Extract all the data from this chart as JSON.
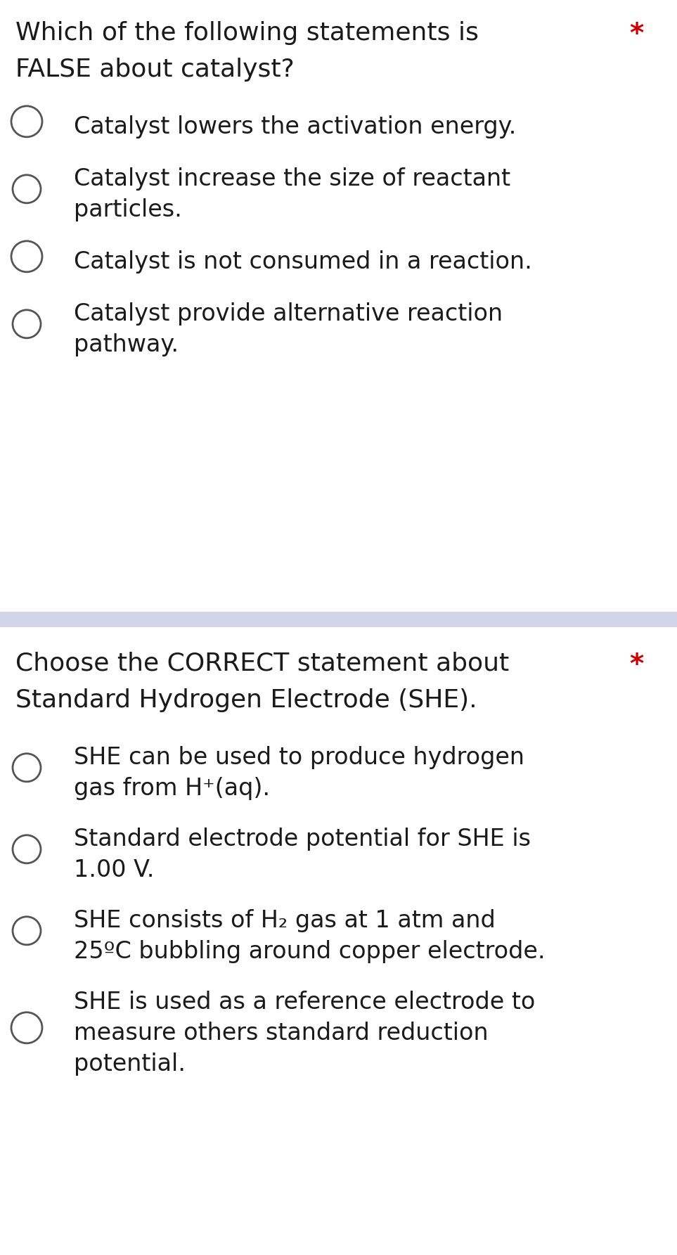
{
  "bg_color": "#ffffff",
  "divider_color": "#d4d4e8",
  "question1": {
    "line1": "Which of the following statements is",
    "line2": "FALSE about catalyst?",
    "asterisk": "*",
    "asterisk_color": "#cc0000",
    "options": [
      {
        "lines": [
          "Catalyst lowers the activation energy."
        ],
        "circle_size": "large"
      },
      {
        "lines": [
          "Catalyst increase the size of reactant",
          "particles."
        ],
        "circle_size": "small"
      },
      {
        "lines": [
          "Catalyst is not consumed in a reaction."
        ],
        "circle_size": "large"
      },
      {
        "lines": [
          "Catalyst provide alternative reaction",
          "pathway."
        ],
        "circle_size": "small"
      }
    ]
  },
  "question2": {
    "line1": "Choose the CORRECT statement about",
    "line2": "Standard Hydrogen Electrode (SHE).",
    "asterisk": "*",
    "asterisk_color": "#cc0000",
    "options": [
      {
        "lines": [
          "SHE can be used to produce hydrogen",
          "gas from H⁺(aq)."
        ],
        "circle_size": "small"
      },
      {
        "lines": [
          "Standard electrode potential for SHE is",
          "1.00 V."
        ],
        "circle_size": "small"
      },
      {
        "lines": [
          "SHE consists of H₂ gas at 1 atm and",
          "25ºC bubbling around copper electrode."
        ],
        "circle_size": "small"
      },
      {
        "lines": [
          "SHE is used as a reference electrode to",
          "measure others standard reduction",
          "potential."
        ],
        "circle_size": "large"
      }
    ]
  },
  "text_color": "#1a1a1a",
  "circle_color": "#555555",
  "font_size_q": 26,
  "font_size_opt": 24,
  "asterisk_size": 28
}
